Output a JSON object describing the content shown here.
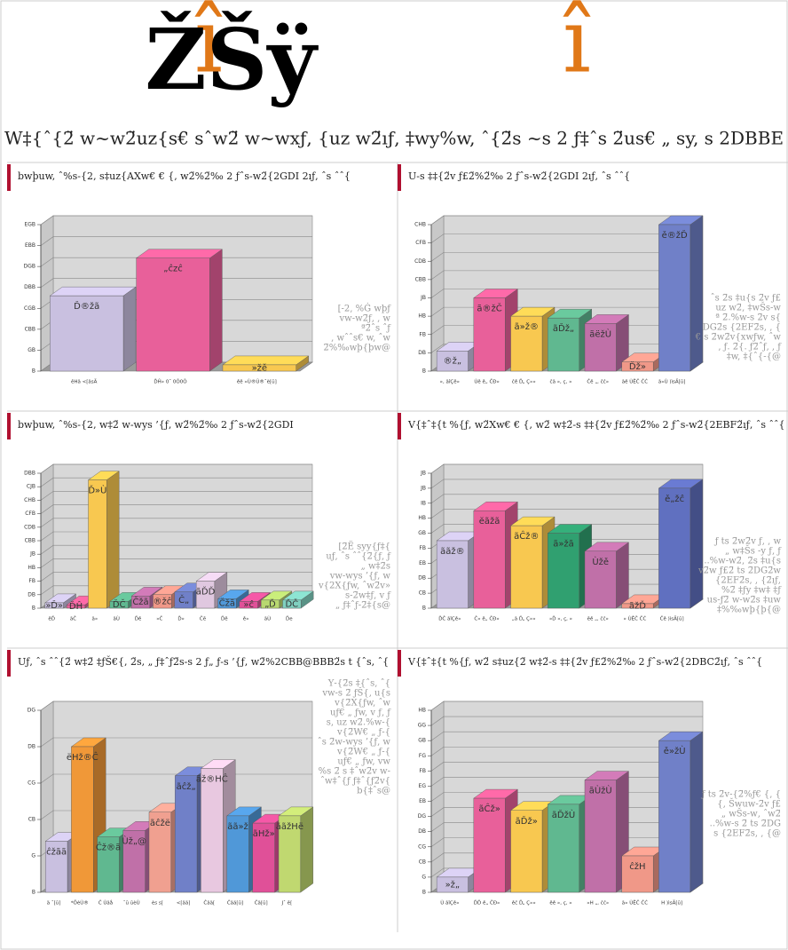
{
  "header": {
    "logo_black": "ŽŠÿ",
    "logo_orange": "î",
    "title": "W‡{ˆ{2̈ w~w2̈uz{s€ sˆw2̈ w~wxƒ, {uz w2̈ıƒ, ‡wy%w, ˆ{2̈s ~s 2 ƒ‡ˆs 2̈us€ „ sy, s 2DBBE",
    "watermark": "%"
  },
  "chart_data": [
    {
      "type": "bar",
      "title": "bwþuw, ˆ%s-{2‚ s‡uz{AXw€ € {, w2̈%2̈‰ 2 ƒˆs-w2̈{2GDI 2ıƒ, ˆs ˆˆ{",
      "categories": [
        "ĕHã <[ãsÄ",
        "ĎĤ» 0ˆ 0Ŏ0Ŏ",
        "ěě »Ù®Ũ®ˆè[ŭ]"
      ],
      "values": [
        180,
        270,
        15
      ],
      "value_labels": [
        "Ď®žã",
        "„ĉzĉ",
        "»žě"
      ],
      "colors": [
        "#c9c0e0",
        "#e8609a",
        "#f8c850"
      ],
      "ylim": [
        0,
        350
      ],
      "yticks": [
        {
          "value": 0,
          "label": "B"
        },
        {
          "value": 50,
          "label": "GB"
        },
        {
          "value": 100,
          "label": "CBB"
        },
        {
          "value": 150,
          "label": "CGB"
        },
        {
          "value": 200,
          "label": "DBB"
        },
        {
          "value": 250,
          "label": "DGB"
        },
        {
          "value": 300,
          "label": "EBB"
        },
        {
          "value": 350,
          "label": "EGB"
        }
      ],
      "note": [
        "[‑2‚ %Ġ wþƒ",
        "vw‑w2̈ƒ, , w",
        "ª2̈ˆs ˆƒ",
        ", wˆˆs€ w, ˆw",
        "2̈%‰wþ{þw@"
      ]
    },
    {
      "type": "bar",
      "title": "U‑s ‡‡{2̈v ƒ£2̈%2̈‰ 2 ƒˆs‑w2̈{2GDI 2ıƒ, ˆs ˆˆ{",
      "categories": [
        "», ãîÇě»",
        "Ùě ě„ ČĐ»",
        "ĉě Ď„ Ç»»",
        "ĉã », ç, »",
        "Čě „, čĉ»",
        "ãě ÙĚČ ČĆ",
        "ã»Ù )ìsÄ[ŭ]"
      ],
      "values": [
        22,
        80,
        60,
        58,
        52,
        10,
        160
      ],
      "value_labels": [
        "®ž„",
        "ã®žČ",
        "ã»ž®",
        "ãĎž„",
        "ãëžÙ",
        "Ďž»",
        "ě®žĎ"
      ],
      "colors": [
        "#c9c0e0",
        "#e8609a",
        "#f8c850",
        "#60b890",
        "#c070a8",
        "#f09888",
        "#7080c8"
      ],
      "ylim": [
        0,
        160
      ],
      "yticks": [
        {
          "value": 0,
          "label": "B"
        },
        {
          "value": 20,
          "label": "DB"
        },
        {
          "value": 40,
          "label": "FB"
        },
        {
          "value": 60,
          "label": "HB"
        },
        {
          "value": 80,
          "label": "JB"
        },
        {
          "value": 100,
          "label": "CBB"
        },
        {
          "value": 120,
          "label": "CDB"
        },
        {
          "value": 140,
          "label": "CFB"
        },
        {
          "value": 160,
          "label": "CHB"
        }
      ],
      "note": [
        "ˆs 2̈s ‡u{s 2̈v ƒ£",
        "uz w2̈, ‡wŠs‑w",
        "ª 2̈.%w‑s 2̈v s{",
        "DG2̈s {2EF2̈s, , {",
        "€ s 2̈w2̈v{xwƒw, ˆw",
        ", ƒ. 2̈{. ƒ2̈ˆƒ, , ƒ",
        "‡w, ‡{ˆ{‑{@"
      ]
    },
    {
      "type": "bar",
      "title": "bwþuw, ˆ%s‑{2‚ w‡2̈ w‑wys ’{ƒ, w2̈%2̈‰ 2 ƒˆs‑w2̈{2GDI",
      "categories": [
        "ěĎ",
        "ãČ",
        "ã»",
        "ãÙ",
        "Ďě",
        "»Č",
        "Ď»",
        "Čĕ",
        "Ďě",
        "ě»",
        "ãÙ",
        "Ďe"
      ],
      "values": [
        8,
        5,
        190,
        10,
        18,
        20,
        24,
        40,
        14,
        10,
        12,
        12
      ],
      "value_labels": [
        "»Ď»",
        "ĎĤ",
        "Ď»Ù",
        "ĎČ",
        "Čžã",
        "®žĉ",
        "Č„",
        "ãĎĎ",
        "Čžã",
        "»ĉ",
        "„Ď",
        "ĎČ"
      ],
      "colors": [
        "#c9c0e0",
        "#e8609a",
        "#f8c850",
        "#60b890",
        "#c070a8",
        "#f09888",
        "#7080c8",
        "#e0c8e0",
        "#5098d8",
        "#e05098",
        "#b8d870",
        "#80d0c0"
      ],
      "ylim": [
        0,
        200
      ],
      "yticks": [
        {
          "value": 0,
          "label": "B"
        },
        {
          "value": 20,
          "label": "DB"
        },
        {
          "value": 40,
          "label": "FB"
        },
        {
          "value": 60,
          "label": "HB"
        },
        {
          "value": 80,
          "label": "JB"
        },
        {
          "value": 100,
          "label": "CBB"
        },
        {
          "value": 120,
          "label": "CDB"
        },
        {
          "value": 140,
          "label": "CFB"
        },
        {
          "value": 160,
          "label": "CHB"
        },
        {
          "value": 180,
          "label": "CJB"
        },
        {
          "value": 200,
          "label": "DBB"
        }
      ],
      "note": [
        "[2̈Ë syy{ƒ‡{",
        "uƒ, ˆs ˆˆ{2̈{ƒ, ƒ",
        "„ w‡2̈s",
        "vw‑wys ’{ƒ, w",
        "v{2X{ƒw, ˆw2̈v»",
        "s‑2̈w‡ƒ, v ƒ",
        "„ ƒ‡ˆƒ‑2̈‡{s@"
      ]
    },
    {
      "type": "bar",
      "title": "V{‡ˆ‡{t %{ƒ, w2̈Xw€ € {, w2̈ w‡2̈‑s ‡‡{2̈v ƒ£2̈%2̈‰ 2 ƒˆs‑w2̈{2EBF2̈ıƒ, ˆs ˆˆ{",
      "categories": [
        "ĎĈ ãîÇě»",
        "Ĉ» ě„ ČĐ»",
        "„ã Ď„ Ç»»",
        "»Ď », ç, »",
        "ĕě „, čĉ»",
        "» ÙĚČ ČĆ",
        "Čě )ìsÄ[ŭ]"
      ],
      "values": [
        45,
        65,
        55,
        50,
        38,
        3,
        80
      ],
      "value_labels": [
        "ããž®",
        "ĕãžã",
        "ãĈž®",
        "ã»žã",
        "Ùžě",
        "ãžĎ",
        "ě„žĉ"
      ],
      "colors": [
        "#c9c0e0",
        "#e8609a",
        "#f8c850",
        "#30a070",
        "#c070a8",
        "#f09888",
        "#6070c0"
      ],
      "ylim": [
        0,
        90
      ],
      "yticks": [
        {
          "value": 0,
          "label": "B"
        },
        {
          "value": 10,
          "label": "CB"
        },
        {
          "value": 20,
          "label": "DB"
        },
        {
          "value": 30,
          "label": "EB"
        },
        {
          "value": 40,
          "label": "FB"
        },
        {
          "value": 50,
          "label": "GB"
        },
        {
          "value": 60,
          "label": "HB"
        },
        {
          "value": 70,
          "label": "IB"
        },
        {
          "value": 80,
          "label": "JB"
        },
        {
          "value": 90,
          "label": "JB"
        }
      ],
      "note": [
        "ƒ ts 2̈w2̈v ƒ, , w",
        "„ w‡Šs ‑y ƒ, ƒ",
        "..%w‑w2̈, 2̈s ‡u{s",
        "v2̈w ƒ£2̈ ts 2̈DG2̈w",
        "{2EF2̈s, , {2̈ıƒ,",
        "%2̈ ‡ƒy ‡w‡ ‡ƒ",
        "us‑ƒ2̈ w‑w2̈s ‡uw",
        "‡%‰wþ{þ{@"
      ]
    },
    {
      "type": "bar",
      "title": "Uƒ, ˆs ˆˆ{2̈ w‡2̈ ‡ƒŠ€{, 2̈s, „ ƒ‡ˆƒ2̈s‑s 2 ƒ„ ƒ‑s ’{ƒ, w2̈%2CBB@BBB2̈s t {ˆs, ˆ{",
      "categories": [
        "ä ˆ[ŭ]",
        "*ÖèÙ®",
        "Ĉ Ùãå",
        "ˆŭ ŭèÙ",
        "ès s[",
        "<[ãä]",
        "Ĉãä[",
        "Ĉãä[ŭ]",
        "Ĉã[ŭ]",
        "Jˆ ĕ["
      ],
      "values": [
        7,
        20,
        7.6,
        8.5,
        11,
        16,
        17,
        10.5,
        9.5,
        10.5
      ],
      "value_labels": [
        "ĉžãã",
        "ëHž®Ĉ",
        "Ĉž®ã",
        "Ùž„@",
        "ãĉžë",
        "ãĉž„",
        "ãž®HĈ",
        "ãã»ž",
        "ãHž»",
        "ããžHë"
      ],
      "colors": [
        "#c9c0e0",
        "#f09838",
        "#60b890",
        "#c070a8",
        "#f0a090",
        "#7080c8",
        "#e8c8e0",
        "#5098d8",
        "#e05098",
        "#c0d870"
      ],
      "ylim": [
        0,
        25
      ],
      "yticks": [
        {
          "value": 0,
          "label": "B"
        },
        {
          "value": 5,
          "label": "G"
        },
        {
          "value": 10,
          "label": "CB"
        },
        {
          "value": 15,
          "label": "CG"
        },
        {
          "value": 20,
          "label": "DB"
        },
        {
          "value": 25,
          "label": "DG"
        }
      ],
      "note": [
        "Y‑{2̈s ‡{ˆs, ˆ{",
        "vw‑s 2̈ ƒŠ{, u{s",
        "v{2̈X{ƒw, ˆw",
        "uƒ€ „ ƒw, v ƒ, ƒ",
        "s, uz w2̈.%w‑{",
        "v{2̈W€ „ ƒ‑{",
        "ˆs 2̈w‑wys ’{ƒ, w",
        "v{2̈W€ „ ƒ‑{",
        "uƒ€ „ ƒw, vw",
        "%s 2̈ s ‡ˆw2̈v w‑",
        "ˆw‡ˆ{ƒ ƒ‡ˆ{ƒ2̈v{",
        "b{‡ˆs@"
      ]
    },
    {
      "type": "bar",
      "title": "V{‡ˆ‡{t %{ƒ, w2̈ s‡uz{2̈ w‡2̈‑s ‡‡{2̈v ƒ£2̈%2̈‰ 2 ƒˆs‑w2̈{2DBC2̈ıƒ, ˆs ˆˆ{",
      "categories": [
        "Ù ãîÇě»",
        "ĎĎ ě„ ČĐ»",
        "ěĉ Ď„ Ç»»",
        "ěě », ç, »",
        "»H „, čĉ»",
        "ã» ÙĚČ ČĆ",
        "H )ìsÄ[ŭ]"
      ],
      "values": [
        5,
        31,
        27,
        29,
        37,
        12,
        50
      ],
      "value_labels": [
        "»ž„",
        "ãĈž»",
        "ãĎž»",
        "ãĎžÙ",
        "ãÙžÙ",
        "ĉžH",
        "ě»žÙ"
      ],
      "colors": [
        "#c9c0e0",
        "#e8609a",
        "#f8c850",
        "#60b890",
        "#c070a8",
        "#f09888",
        "#7080c8"
      ],
      "ylim": [
        0,
        60
      ],
      "yticks": [
        {
          "value": 0,
          "label": "B"
        },
        {
          "value": 5,
          "label": "G"
        },
        {
          "value": 10,
          "label": "CB"
        },
        {
          "value": 15,
          "label": "CG"
        },
        {
          "value": 20,
          "label": "DB"
        },
        {
          "value": 25,
          "label": "DG"
        },
        {
          "value": 30,
          "label": "EB"
        },
        {
          "value": 35,
          "label": "EG"
        },
        {
          "value": 40,
          "label": "FB"
        },
        {
          "value": 45,
          "label": "FG"
        },
        {
          "value": 50,
          "label": "GB"
        },
        {
          "value": 55,
          "label": "GG"
        },
        {
          "value": 60,
          "label": "HB"
        }
      ],
      "note": [
        "ƒ ts 2̈v‑{2̈%ƒ€ {, {",
        "{‚ Šwuw‑2̈v ƒ£",
        "„ wŠs‑w‚ ˆw2̈",
        "..%w‑s 2̈ ts 2̈DG",
        "s {2EF2̈s, , {@"
      ]
    }
  ]
}
